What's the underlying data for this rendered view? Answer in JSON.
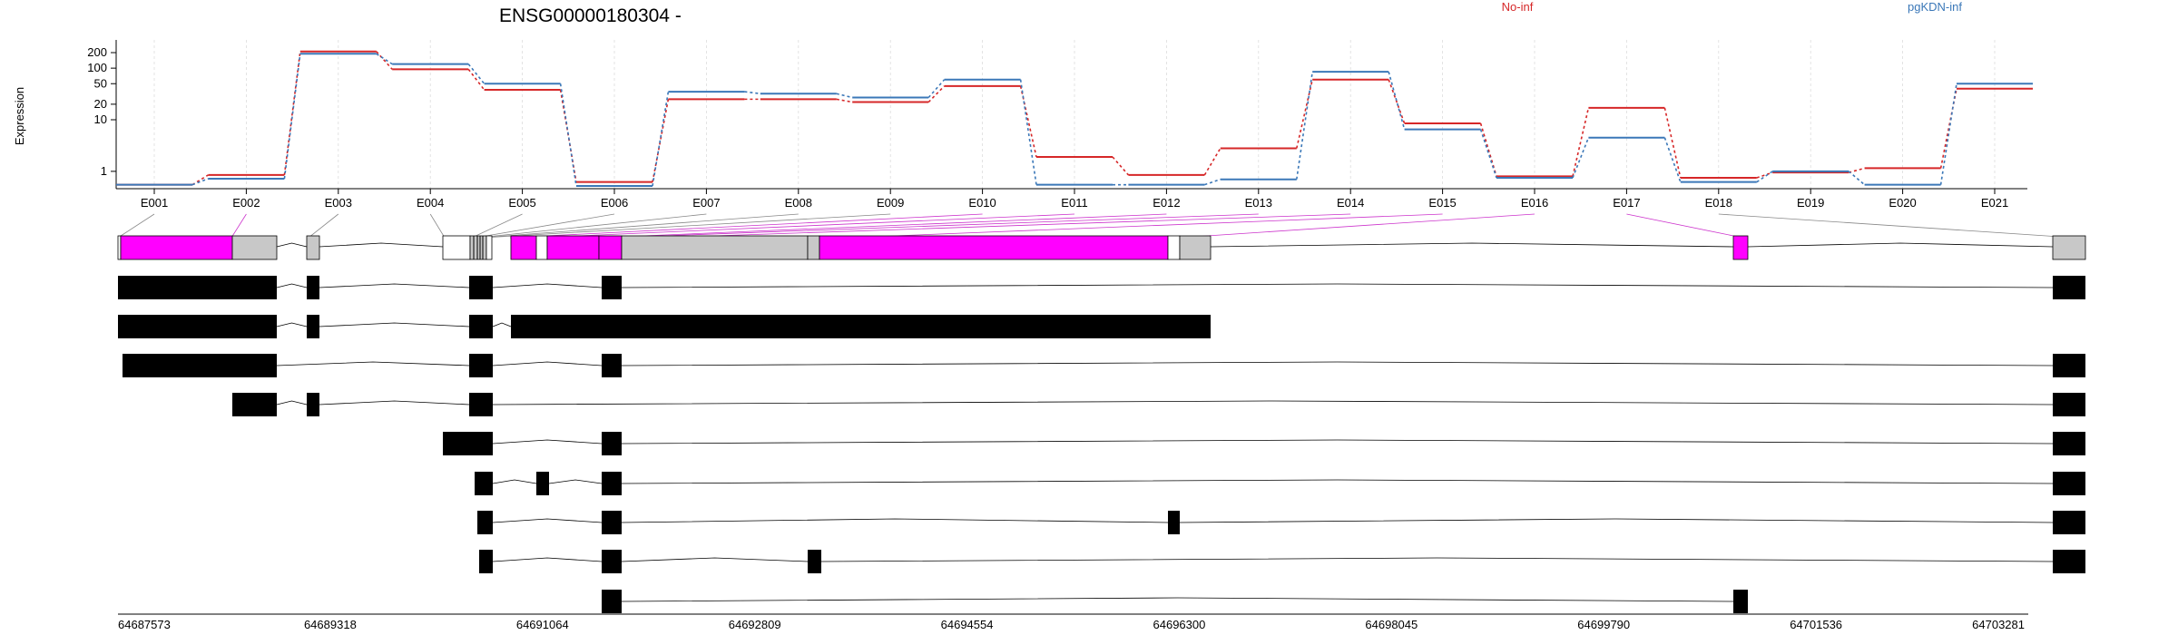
{
  "chart_data": {
    "type": "line",
    "title": "ENSG00000180304 -",
    "ylabel": "Expression",
    "y_scale": "log",
    "ylim": [
      0.5,
      300
    ],
    "y_ticks": [
      1,
      10,
      20,
      50,
      100,
      200
    ],
    "y_tick_labels": [
      "1",
      "10",
      "20",
      "50",
      "100",
      "200"
    ],
    "grid": true,
    "legend": "top",
    "categories": [
      "E001",
      "E002",
      "E003",
      "E004",
      "E005",
      "E006",
      "E007",
      "E008",
      "E009",
      "E010",
      "E011",
      "E012",
      "E013",
      "E014",
      "E015",
      "E016",
      "E017",
      "E018",
      "E019",
      "E020",
      "E021"
    ],
    "series": [
      {
        "name": "No-inf",
        "color": "#d62728",
        "values": [
          0.55,
          0.85,
          210,
          95,
          38,
          0.62,
          25,
          25,
          22,
          45,
          1.9,
          0.85,
          2.8,
          60,
          8.5,
          0.8,
          17,
          0.75,
          0.95,
          1.15,
          40
        ]
      },
      {
        "name": "pgKDN-inf",
        "color": "#3b78b8",
        "values": [
          0.55,
          0.72,
          190,
          120,
          50,
          0.52,
          35,
          32,
          27,
          60,
          0.55,
          0.55,
          0.7,
          85,
          6.5,
          0.75,
          4.5,
          0.62,
          1.0,
          0.55,
          50
        ]
      }
    ],
    "genomic_axis": {
      "tick_labels": [
        "64687573",
        "64689318",
        "64691064",
        "64692809",
        "64694554",
        "64696300",
        "64698045",
        "64699790",
        "64701536",
        "64703281"
      ],
      "range": [
        64687573,
        64703281
      ]
    },
    "colors": {
      "highlight_exon": "#ff00ff",
      "exon": "#c8c8c8",
      "transcript_exon": "#000000"
    }
  }
}
